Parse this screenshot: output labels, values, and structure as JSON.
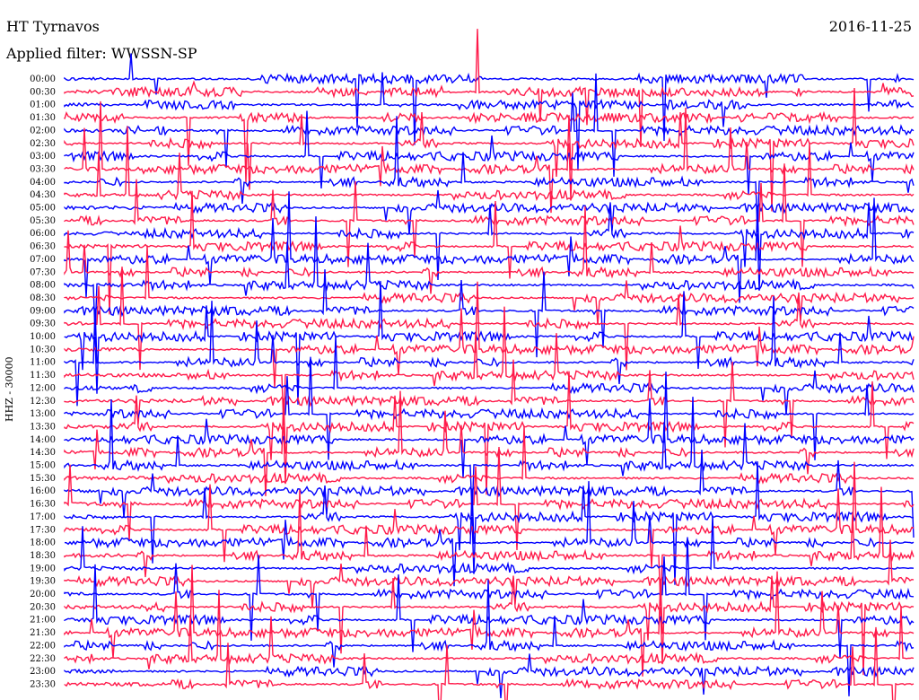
{
  "header": {
    "station": "HT Tyrnavos",
    "filter": "Applied filter: WWSSN-SP",
    "date": "2016-11-25"
  },
  "channel_label": "HHZ - 30000",
  "colors": {
    "trace_a": "#0000ff",
    "trace_b": "#ff1a4a",
    "background": "#ffffff"
  },
  "chart_data": {
    "type": "line",
    "title": "HT Tyrnavos",
    "subtitle": "Applied filter: WWSSN-SP",
    "ylabel": "HHZ - 30000",
    "y_tick_labels": [
      "00:00",
      "00:30",
      "01:00",
      "01:30",
      "02:00",
      "02:30",
      "03:00",
      "03:30",
      "04:00",
      "04:30",
      "05:00",
      "05:30",
      "06:00",
      "06:30",
      "07:00",
      "07:30",
      "08:00",
      "08:30",
      "09:00",
      "09:30",
      "10:00",
      "10:30",
      "11:00",
      "11:30",
      "12:00",
      "12:30",
      "13:00",
      "13:30",
      "14:00",
      "14:30",
      "15:00",
      "15:30",
      "16:00",
      "16:30",
      "17:00",
      "17:30",
      "18:00",
      "18:30",
      "19:00",
      "19:30",
      "20:00",
      "20:30",
      "21:00",
      "21:30",
      "22:00",
      "22:30",
      "23:00",
      "23:30"
    ],
    "series": [],
    "grid": false
  }
}
